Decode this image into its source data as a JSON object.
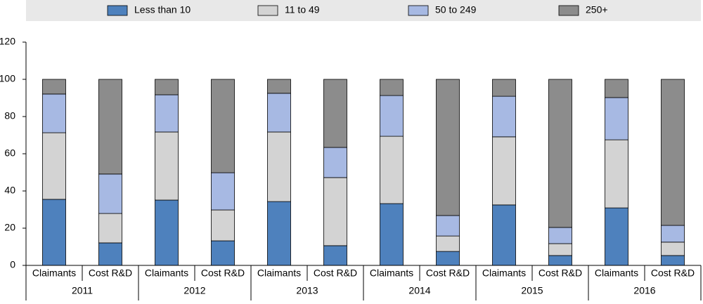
{
  "chart_data": {
    "type": "stacked-bar",
    "categories": [
      "Claimants",
      "Cost R&D",
      "Claimants",
      "Cost R&D",
      "Claimants",
      "Cost R&D",
      "Claimants",
      "Cost R&D",
      "Claimants",
      "Cost R&D",
      "Claimants",
      "Cost R&D"
    ],
    "groups": [
      "2011",
      "2012",
      "2013",
      "2014",
      "2015",
      "2016"
    ],
    "series": [
      {
        "name": "Less than 10",
        "color": "#4e81bd",
        "values": [
          35.5,
          12.1,
          35.1,
          13.2,
          34.3,
          10.6,
          33.2,
          7.5,
          32.5,
          5.3,
          30.9,
          5.3
        ]
      },
      {
        "name": "11 to 49",
        "color": "#d3d3d3",
        "values": [
          35.8,
          15.8,
          36.6,
          16.6,
          37.4,
          36.6,
          36.2,
          8.3,
          36.6,
          6.4,
          36.6,
          7.2
        ]
      },
      {
        "name": "50 to 249",
        "color": "#a7b9e3",
        "values": [
          20.8,
          21.2,
          20.0,
          20.0,
          20.8,
          16.2,
          21.9,
          11.0,
          21.8,
          8.7,
          22.7,
          9.0
        ]
      },
      {
        "name": "250+",
        "color": "#8c8c8c",
        "values": [
          7.9,
          50.9,
          8.3,
          50.2,
          7.5,
          36.6,
          8.7,
          73.2,
          9.1,
          79.6,
          9.8,
          78.5
        ]
      }
    ],
    "ylim": [
      0,
      120
    ],
    "yticks": [
      0,
      20,
      40,
      60,
      80,
      100,
      120
    ]
  }
}
